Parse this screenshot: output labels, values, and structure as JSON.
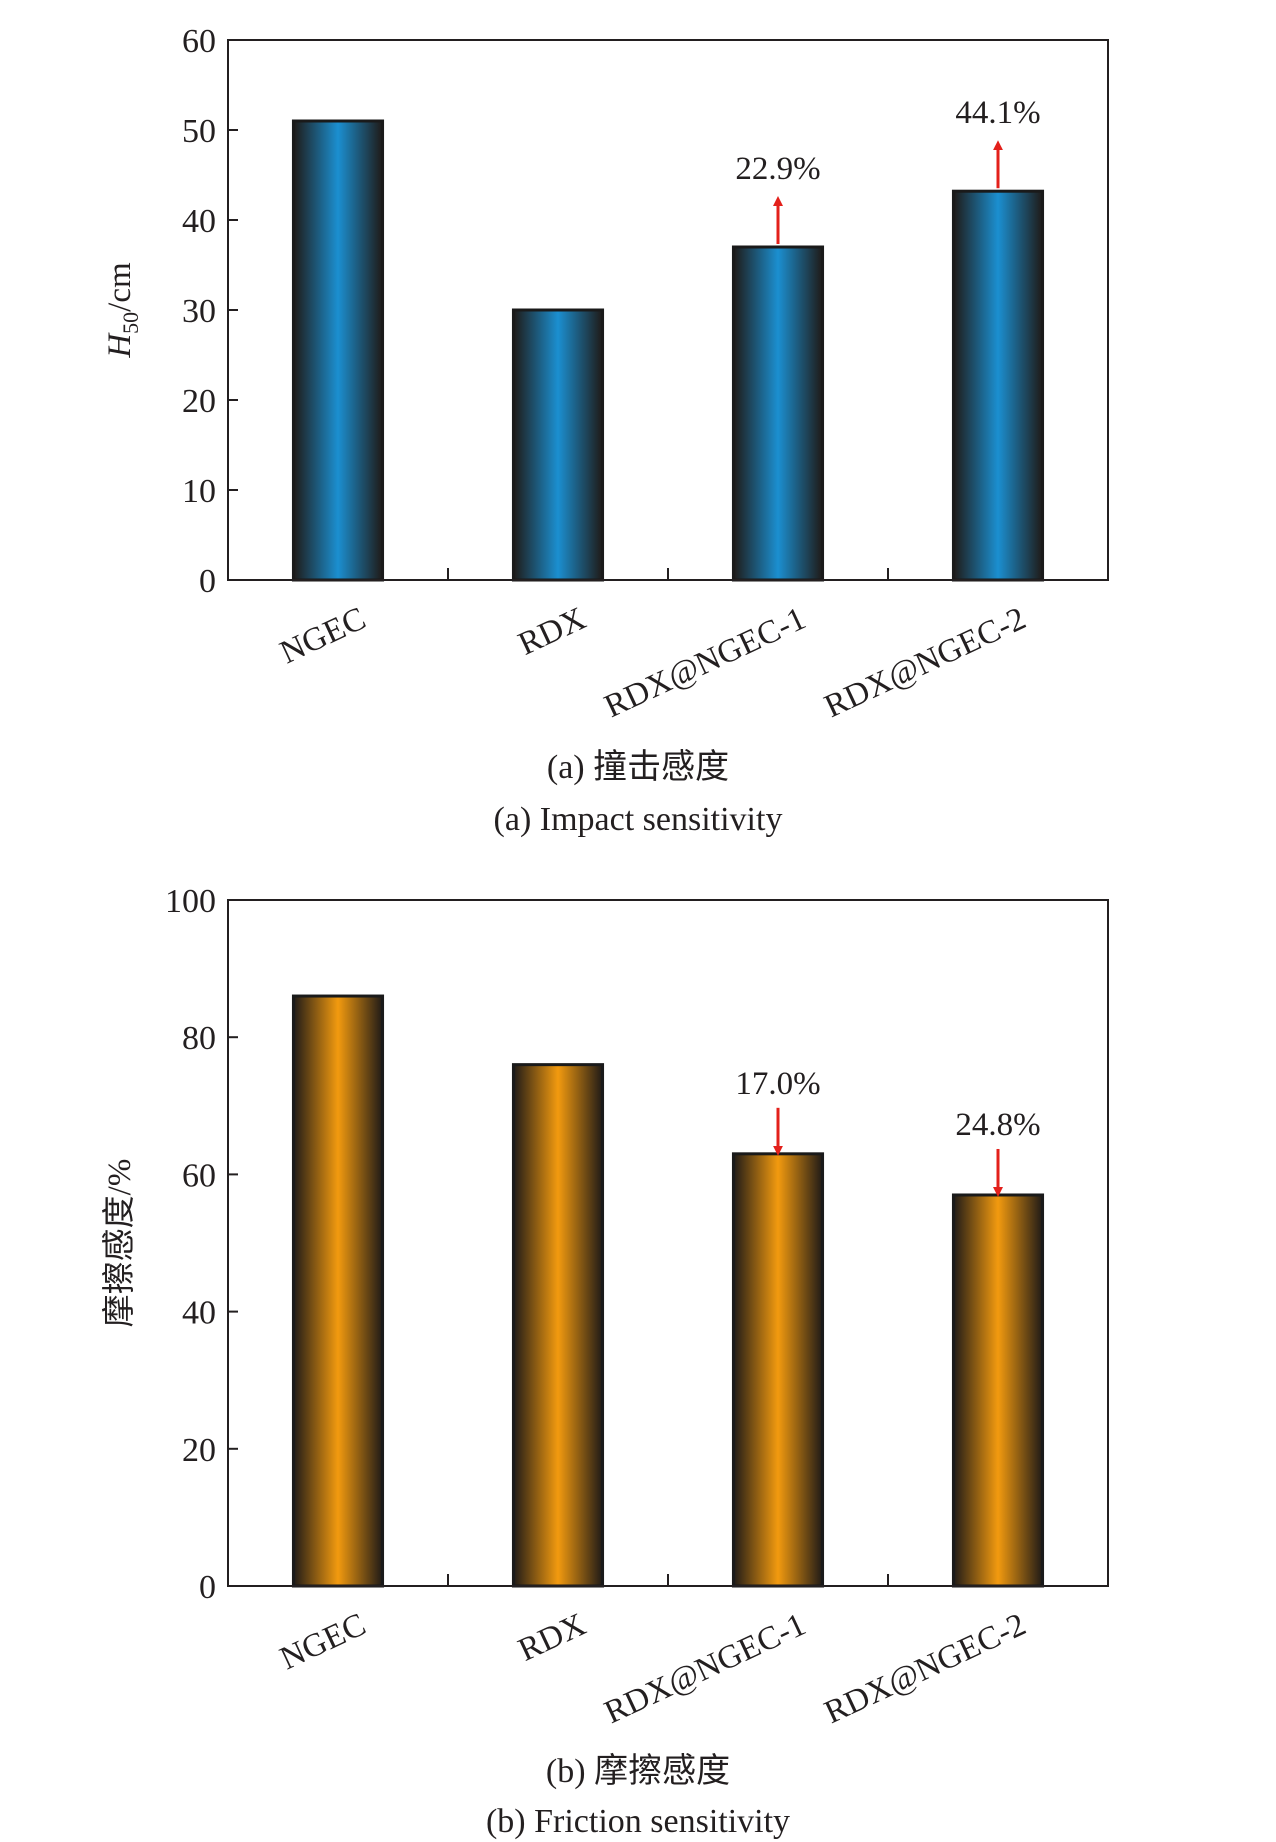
{
  "chart_data": [
    {
      "type": "bar",
      "categories": [
        "NGEC",
        "RDX",
        "RDX@NGEC-1",
        "RDX@NGEC-2"
      ],
      "values": [
        51,
        30,
        37,
        43.2
      ],
      "ylim": [
        0,
        60
      ],
      "yticks": [
        0,
        10,
        20,
        30,
        40,
        50,
        60
      ],
      "ylabel_main": "H",
      "ylabel_sub": "50",
      "ylabel_unit": "/cm",
      "caption_zh": "(a) 撞击感度",
      "caption_en": "(a) Impact sensitivity",
      "annotations": [
        {
          "category_index": 2,
          "text": "22.9%",
          "direction": "up"
        },
        {
          "category_index": 3,
          "text": "44.1%",
          "direction": "up"
        }
      ],
      "bar_colors": {
        "edge": "#1f1a17",
        "center": "#1b8fd0"
      },
      "arrow_color": "#e3201b",
      "grid": false
    },
    {
      "type": "bar",
      "categories": [
        "NGEC",
        "RDX",
        "RDX@NGEC-1",
        "RDX@NGEC-2"
      ],
      "values": [
        86,
        76,
        63,
        57
      ],
      "ylim": [
        0,
        100
      ],
      "yticks": [
        0,
        20,
        40,
        60,
        80,
        100
      ],
      "ylabel": "摩擦感度/%",
      "caption_zh": "(b) 摩擦感度",
      "caption_en": "(b) Friction sensitivity",
      "annotations": [
        {
          "category_index": 2,
          "text": "17.0%",
          "direction": "down"
        },
        {
          "category_index": 3,
          "text": "24.8%",
          "direction": "down"
        }
      ],
      "bar_colors": {
        "edge": "#1f1a17",
        "center": "#f29a0f"
      },
      "arrow_color": "#e3201b",
      "grid": false
    }
  ]
}
